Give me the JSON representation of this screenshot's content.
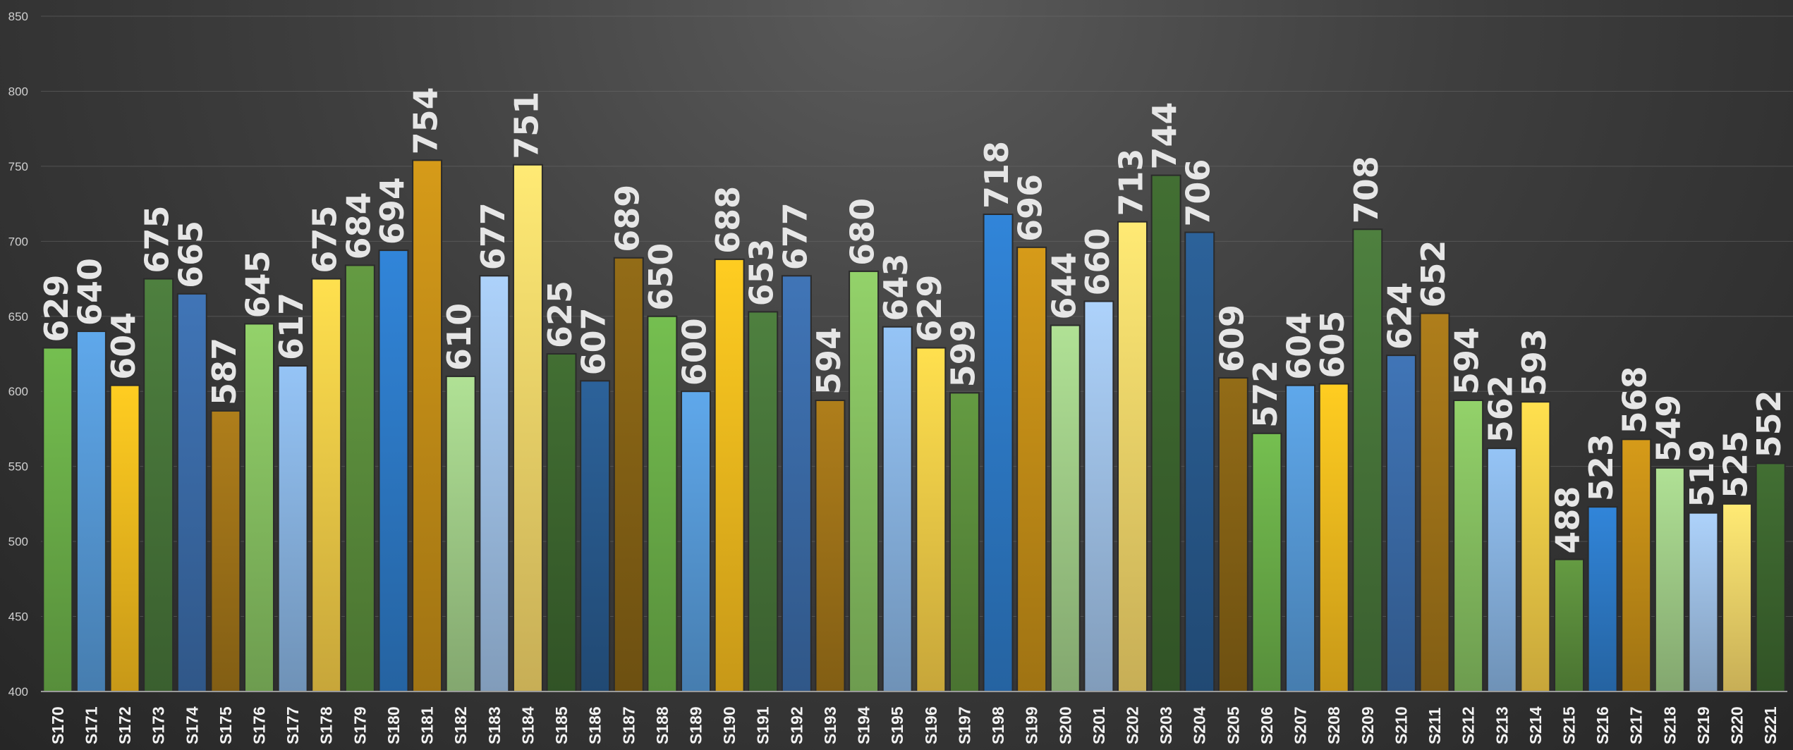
{
  "chart_data": {
    "type": "bar",
    "title": "",
    "xlabel": "",
    "ylabel": "",
    "ylim": [
      400,
      850
    ],
    "yticks": [
      400,
      450,
      500,
      550,
      600,
      650,
      700,
      750,
      800,
      850
    ],
    "grid": true,
    "legend": "none",
    "categories": [
      "S170",
      "S171",
      "S172",
      "S173",
      "S174",
      "S175",
      "S176",
      "S177",
      "S178",
      "S179",
      "S180",
      "S181",
      "S182",
      "S183",
      "S184",
      "S185",
      "S186",
      "S187",
      "S188",
      "S189",
      "S190",
      "S191",
      "S192",
      "S193",
      "S194",
      "S195",
      "S196",
      "S197",
      "S198",
      "S199",
      "S200",
      "S201",
      "S202",
      "S203",
      "S204",
      "S205",
      "S206",
      "S207",
      "S208",
      "S209",
      "S210",
      "S211",
      "S212",
      "S213",
      "S214",
      "S215",
      "S216",
      "S217",
      "S218",
      "S219",
      "S220",
      "S221"
    ],
    "values": [
      629,
      640,
      604,
      675,
      665,
      587,
      645,
      617,
      675,
      684,
      694,
      754,
      610,
      677,
      751,
      625,
      607,
      689,
      650,
      600,
      688,
      653,
      677,
      594,
      680,
      643,
      629,
      599,
      718,
      696,
      644,
      660,
      713,
      744,
      706,
      609,
      572,
      604,
      605,
      708,
      624,
      652,
      594,
      562,
      593,
      488,
      523,
      568,
      549,
      519,
      525,
      552
    ],
    "palette": [
      "#6fb64c",
      "#5aa0e0",
      "#ffc31f",
      "#4a7a3c",
      "#3d6fae",
      "#a7781a",
      "#8cc865",
      "#8ebbea",
      "#ffd54a",
      "#5f943f",
      "#2f7fcf",
      "#cc9418",
      "#a8d68e",
      "#a5c8ef",
      "#ffdf6e",
      "#3f6a31",
      "#2a5d93",
      "#8c6716"
    ]
  }
}
